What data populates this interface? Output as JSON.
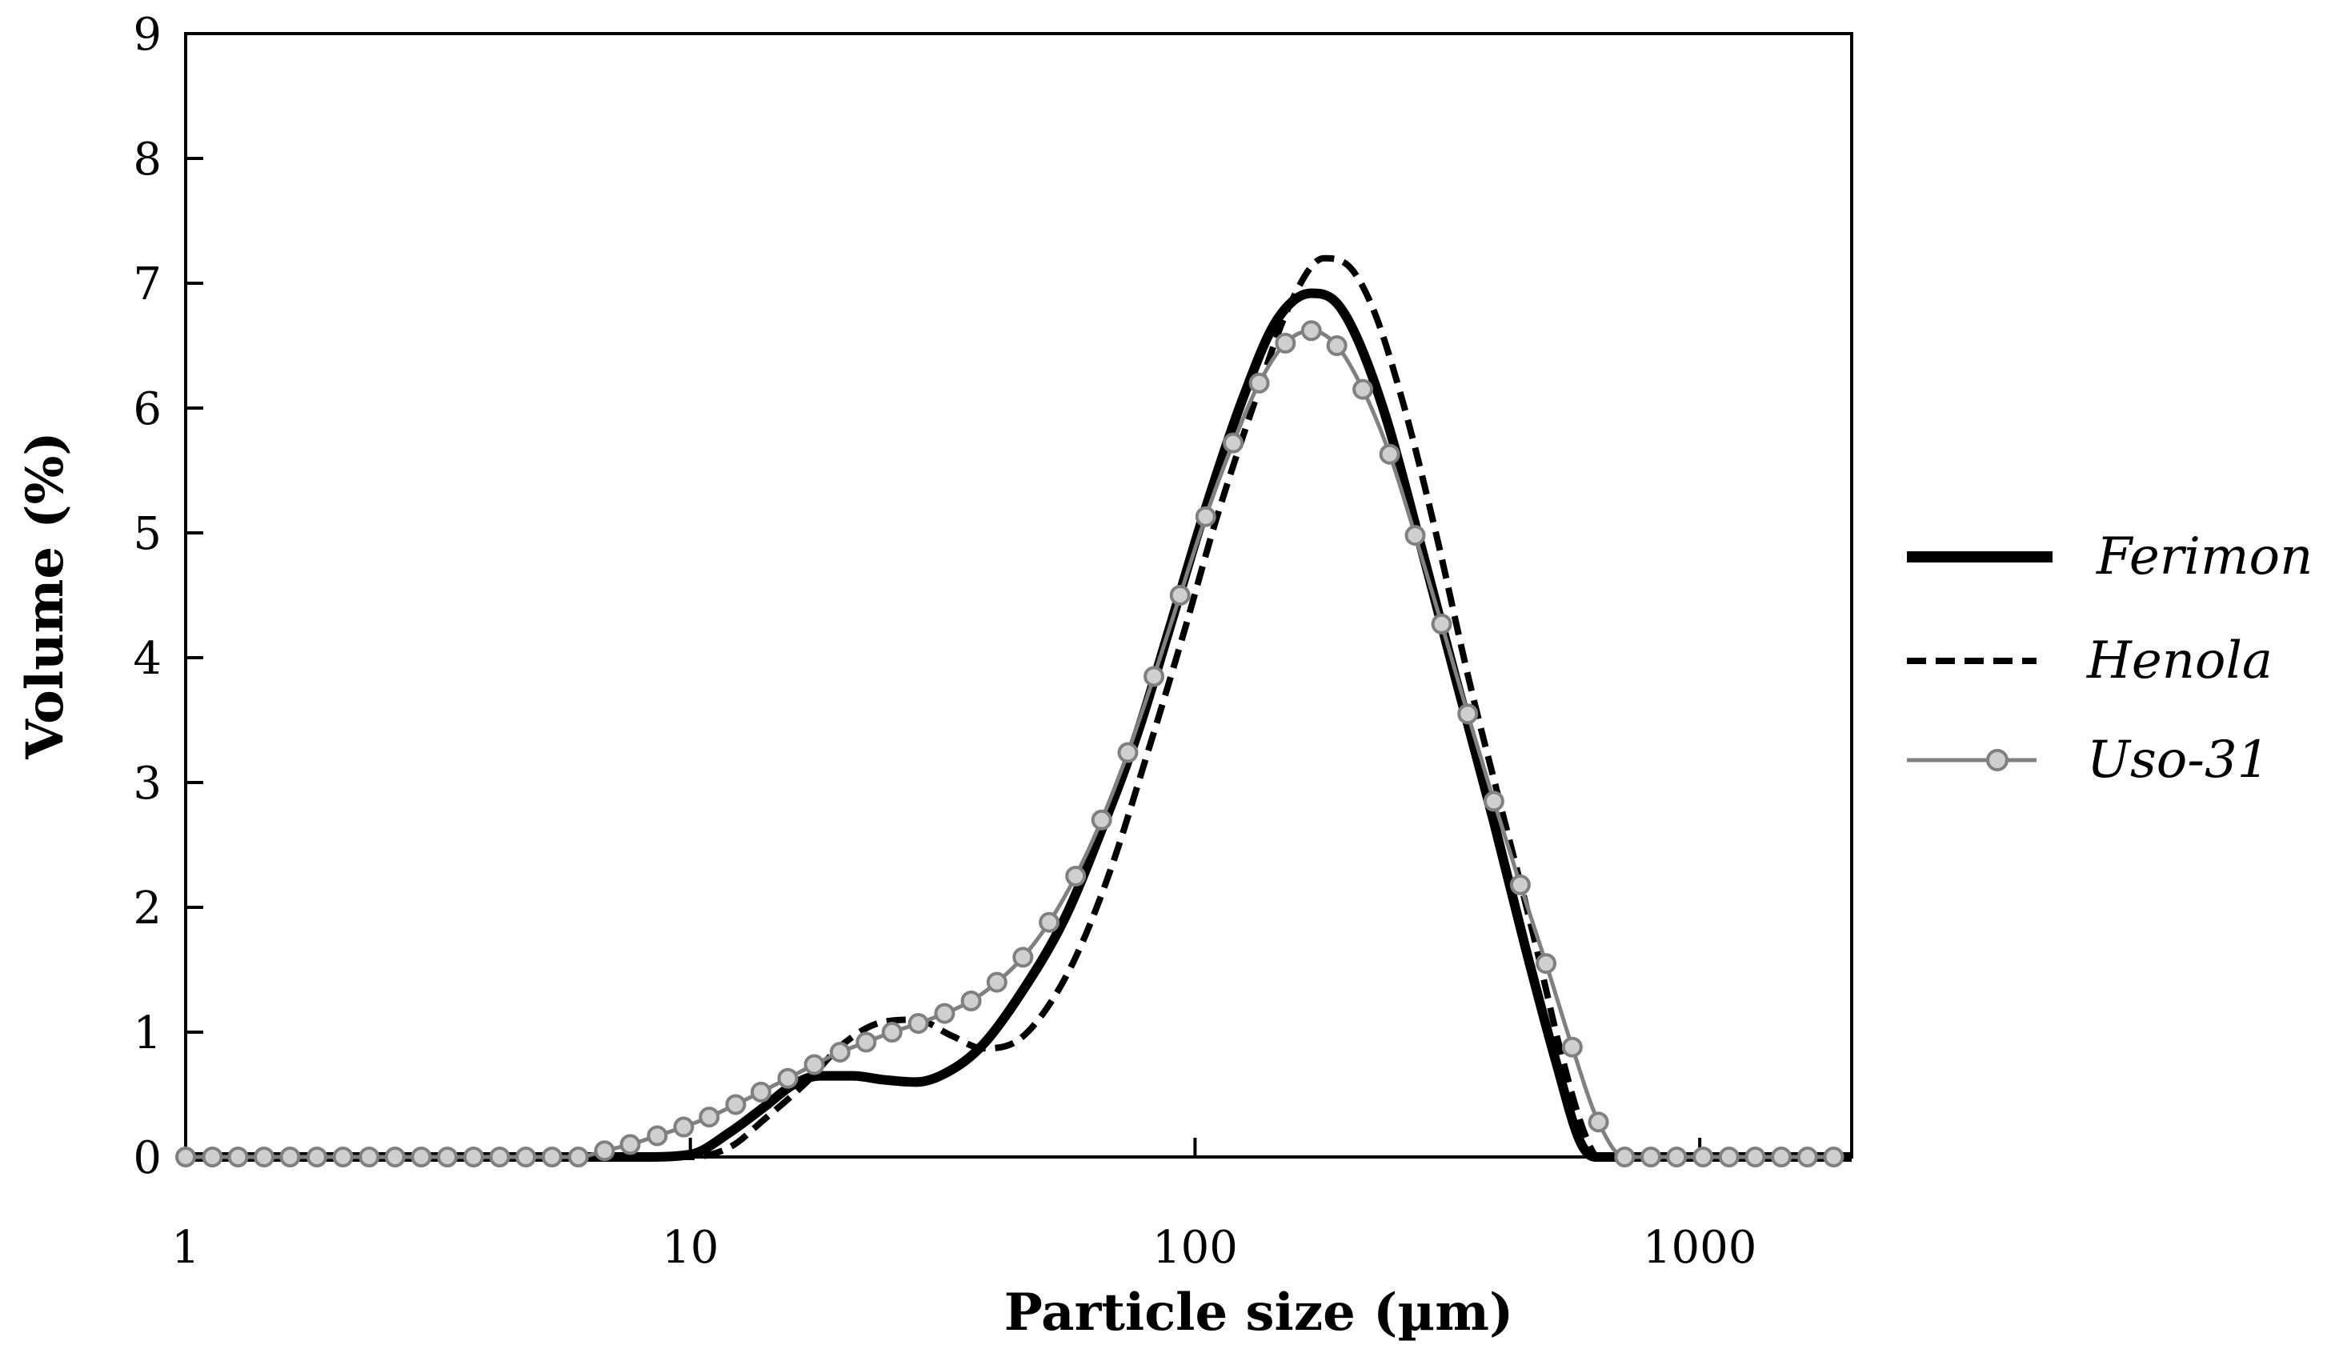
{
  "chart_data": {
    "type": "line",
    "xlabel": "Particle size (µm)",
    "ylabel": "Volume (%)",
    "xscale": "log",
    "xlim": [
      1,
      2000
    ],
    "ylim": [
      0,
      9
    ],
    "xticks": [
      1,
      10,
      100,
      1000
    ],
    "xtick_labels": [
      "1",
      "10",
      "100",
      "1000"
    ],
    "yticks": [
      0,
      1,
      2,
      3,
      4,
      5,
      6,
      7,
      8,
      9
    ],
    "ytick_labels": [
      "0",
      "1",
      "2",
      "3",
      "4",
      "5",
      "6",
      "7",
      "8",
      "9"
    ],
    "grid": false,
    "legend": "right",
    "series": [
      {
        "name": "Ferimon",
        "style": "solid-thick",
        "color": "#000000",
        "points": [
          [
            1,
            0
          ],
          [
            8,
            0
          ],
          [
            10,
            0.02
          ],
          [
            12,
            0.2
          ],
          [
            14,
            0.4
          ],
          [
            16,
            0.58
          ],
          [
            18,
            0.65
          ],
          [
            21,
            0.65
          ],
          [
            24,
            0.62
          ],
          [
            28,
            0.6
          ],
          [
            33,
            0.7
          ],
          [
            38,
            0.9
          ],
          [
            45,
            1.3
          ],
          [
            55,
            1.9
          ],
          [
            65,
            2.6
          ],
          [
            77,
            3.4
          ],
          [
            90,
            4.3
          ],
          [
            105,
            5.2
          ],
          [
            125,
            6.1
          ],
          [
            145,
            6.7
          ],
          [
            170,
            6.92
          ],
          [
            190,
            6.85
          ],
          [
            210,
            6.55
          ],
          [
            240,
            5.9
          ],
          [
            280,
            4.9
          ],
          [
            330,
            3.8
          ],
          [
            390,
            2.7
          ],
          [
            450,
            1.7
          ],
          [
            520,
            0.75
          ],
          [
            580,
            0.12
          ],
          [
            620,
            0
          ],
          [
            2000,
            0
          ]
        ]
      },
      {
        "name": "Henola",
        "style": "dashed",
        "color": "#000000",
        "points": [
          [
            1,
            0
          ],
          [
            10,
            0
          ],
          [
            12,
            0.08
          ],
          [
            14,
            0.3
          ],
          [
            17,
            0.6
          ],
          [
            20,
            0.9
          ],
          [
            24,
            1.08
          ],
          [
            28,
            1.1
          ],
          [
            33,
            0.97
          ],
          [
            38,
            0.87
          ],
          [
            44,
            0.92
          ],
          [
            50,
            1.15
          ],
          [
            58,
            1.6
          ],
          [
            68,
            2.3
          ],
          [
            80,
            3.2
          ],
          [
            95,
            4.2
          ],
          [
            110,
            5.1
          ],
          [
            130,
            6.0
          ],
          [
            155,
            6.85
          ],
          [
            180,
            7.2
          ],
          [
            200,
            7.15
          ],
          [
            225,
            6.8
          ],
          [
            260,
            6.0
          ],
          [
            300,
            5.0
          ],
          [
            350,
            3.8
          ],
          [
            410,
            2.7
          ],
          [
            470,
            1.75
          ],
          [
            530,
            0.85
          ],
          [
            590,
            0.2
          ],
          [
            630,
            0
          ],
          [
            2000,
            0
          ]
        ]
      },
      {
        "name": "Uso-31",
        "style": "gray-markers",
        "color": "#808080",
        "marker_fill": "#cfcfcf",
        "points": [
          [
            1,
            0
          ],
          [
            1.13,
            0
          ],
          [
            1.27,
            0
          ],
          [
            1.43,
            0
          ],
          [
            1.61,
            0
          ],
          [
            1.82,
            0
          ],
          [
            2.05,
            0
          ],
          [
            2.31,
            0
          ],
          [
            2.6,
            0
          ],
          [
            2.93,
            0
          ],
          [
            3.3,
            0
          ],
          [
            3.72,
            0
          ],
          [
            4.19,
            0
          ],
          [
            4.72,
            0
          ],
          [
            5.32,
            0
          ],
          [
            6,
            0
          ],
          [
            6.76,
            0.05
          ],
          [
            7.6,
            0.1
          ],
          [
            8.6,
            0.17
          ],
          [
            9.7,
            0.24
          ],
          [
            10.9,
            0.32
          ],
          [
            12.3,
            0.42
          ],
          [
            13.8,
            0.52
          ],
          [
            15.6,
            0.63
          ],
          [
            17.6,
            0.74
          ],
          [
            19.8,
            0.84
          ],
          [
            22.3,
            0.92
          ],
          [
            25.1,
            1.0
          ],
          [
            28.3,
            1.07
          ],
          [
            31.9,
            1.15
          ],
          [
            36,
            1.25
          ],
          [
            40.5,
            1.4
          ],
          [
            45.6,
            1.6
          ],
          [
            51.4,
            1.88
          ],
          [
            58,
            2.25
          ],
          [
            65.3,
            2.7
          ],
          [
            73.6,
            3.24
          ],
          [
            82.9,
            3.85
          ],
          [
            93.4,
            4.5
          ],
          [
            105,
            5.13
          ],
          [
            119,
            5.72
          ],
          [
            134,
            6.2
          ],
          [
            151,
            6.52
          ],
          [
            170,
            6.62
          ],
          [
            191,
            6.5
          ],
          [
            215,
            6.15
          ],
          [
            243,
            5.63
          ],
          [
            273,
            4.98
          ],
          [
            308,
            4.27
          ],
          [
            347,
            3.55
          ],
          [
            391,
            2.85
          ],
          [
            441,
            2.18
          ],
          [
            496,
            1.55
          ],
          [
            559,
            0.88
          ],
          [
            630,
            0.28
          ],
          [
            710,
            0
          ],
          [
            800,
            0
          ],
          [
            900,
            0
          ],
          [
            1015,
            0
          ],
          [
            1143,
            0
          ],
          [
            1288,
            0
          ],
          [
            1451,
            0
          ],
          [
            1635,
            0
          ],
          [
            1842,
            0
          ]
        ]
      }
    ]
  }
}
